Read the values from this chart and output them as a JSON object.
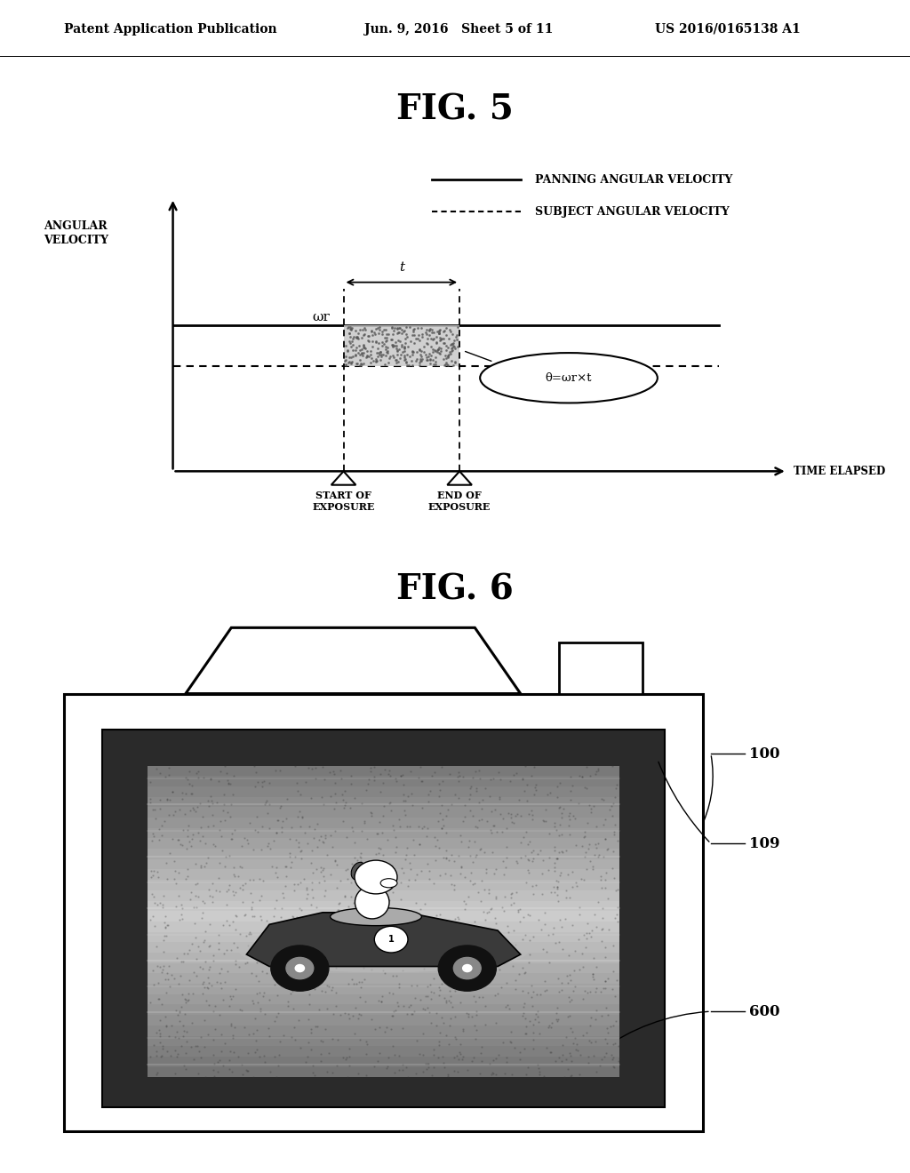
{
  "fig_title": "FIG. 5",
  "fig6_title": "FIG. 6",
  "header_left": "Patent Application Publication",
  "header_center": "Jun. 9, 2016   Sheet 5 of 11",
  "header_right": "US 2016/0165138 A1",
  "legend_solid": "PANNING ANGULAR VELOCITY",
  "legend_dashed": "SUBJECT ANGULAR VELOCITY",
  "ylabel": "ANGULAR\nVELOCITY",
  "xlabel": "TIME ELAPSED",
  "omega_label": "ωr",
  "t_label": "t",
  "theta_label": "θ=ωr×t",
  "start_exposure": "START OF\nEXPOSURE",
  "end_exposure": "END OF\nEXPOSURE",
  "label_100": "100",
  "label_109": "109",
  "label_600": "600",
  "bg_color": "#ffffff",
  "line_color": "#000000",
  "shading_color": "#c8c8c8",
  "bezel_color": "#2a2a2a",
  "screen_light": "#c0c0c0",
  "screen_dark": "#888888"
}
